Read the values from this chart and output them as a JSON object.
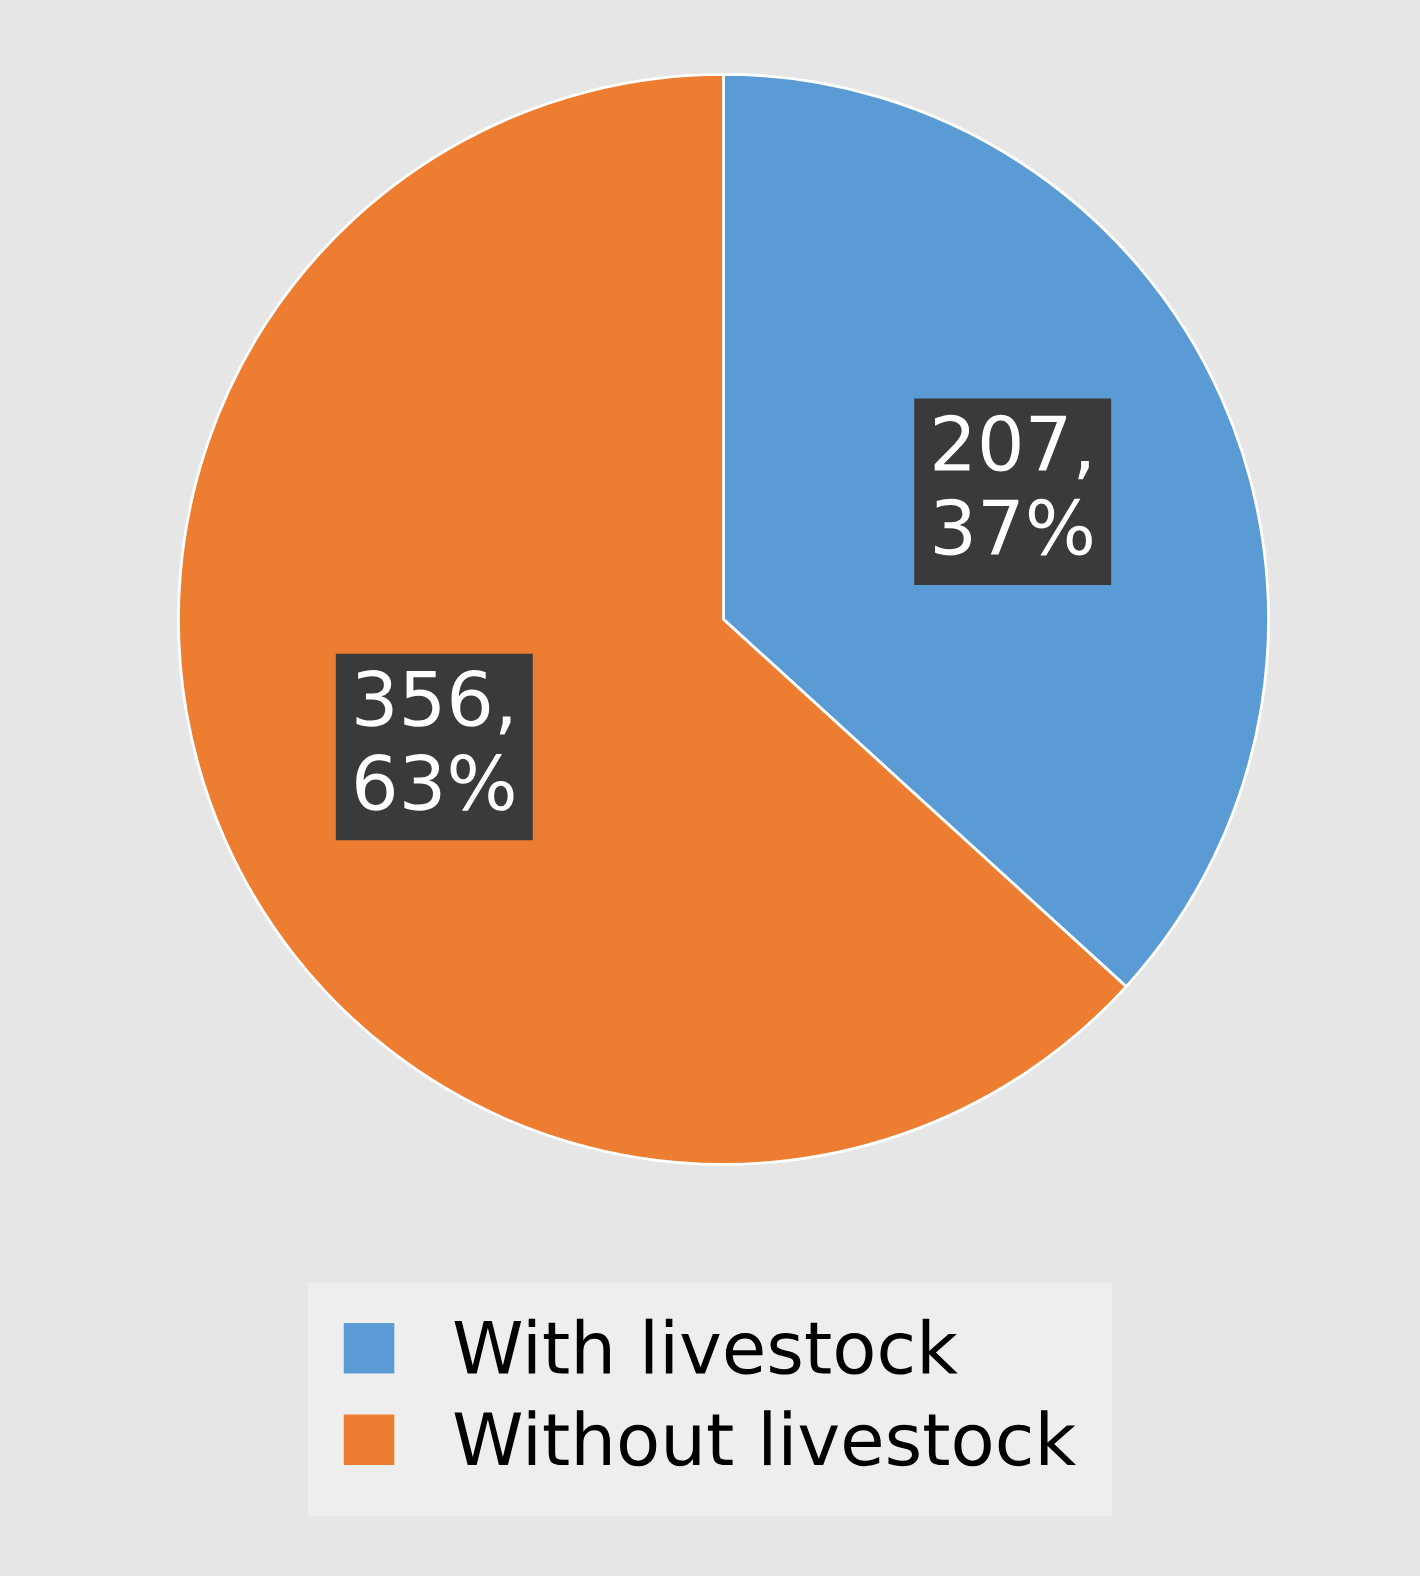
{
  "chart_data": {
    "type": "pie",
    "categories": [
      "With livestock",
      "Without livestock"
    ],
    "values": [
      207,
      356
    ],
    "colors": [
      "#5b9bd5",
      "#ed7d31"
    ],
    "value_labels": [
      "207,\n37%",
      "356,\n63%"
    ],
    "legend": "bottom"
  }
}
